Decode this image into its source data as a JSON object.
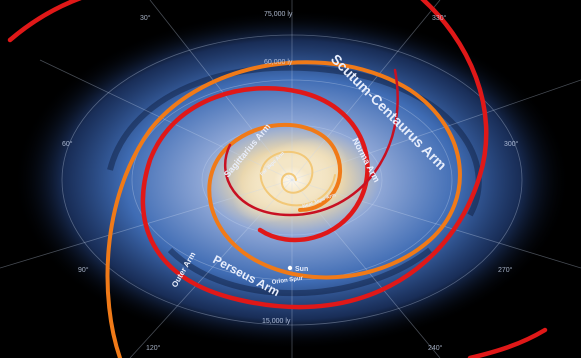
{
  "image": {
    "subject": "Milky Way spiral galaxy map with highlighted spiral arms",
    "colors": {
      "space": "#000000",
      "galaxy_core": "#f4e6c6",
      "galaxy_disk": "#3f6cb4",
      "spiral_outer": "#e01818",
      "spiral_middle": "#f07a18",
      "spiral_inner": "#f2c878",
      "grid": "#c9d6ee"
    }
  },
  "distance_labels": {
    "ly_75000": "75,000 ly",
    "ly_60000": "60,000 ly",
    "ly_15000": "15,000 ly"
  },
  "angle_labels": {
    "deg_30": "30°",
    "deg_60": "60°",
    "deg_90": "90°",
    "deg_120": "120°",
    "deg_240": "240°",
    "deg_270": "270°",
    "deg_300": "300°",
    "deg_330": "330°"
  },
  "arm_labels": {
    "scutum_centaurus": "Scutum-Centaurus Arm",
    "norma": "Norma Arm",
    "sagittarius": "Sagittarius Arm",
    "perseus": "Perseus Arm",
    "outer": "Outer Arm",
    "far_3kpc": "Far 3kpc Arm",
    "near_3kpc": "Near 3kpc Arm",
    "orion_spur": "Orion Spur",
    "sun": "Sun"
  }
}
